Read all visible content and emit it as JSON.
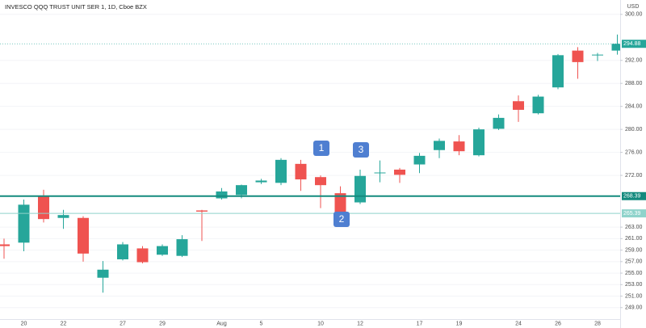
{
  "chart_data": {
    "type": "candlestick",
    "title": "INVESCO QQQ TRUST UNIT SER 1, 1D, Cboe BZX",
    "currency": "USD",
    "categories": [
      null,
      "20",
      null,
      "22",
      null,
      null,
      "27",
      null,
      "29",
      null,
      null,
      "Aug",
      null,
      "5",
      null,
      null,
      "10",
      null,
      "12",
      null,
      null,
      "17",
      null,
      "19",
      null,
      null,
      "24",
      null,
      "26",
      null,
      "28",
      null
    ],
    "open": [
      260.0,
      260.3,
      268.4,
      264.6,
      264.6,
      254.2,
      257.4,
      259.3,
      258.2,
      258.0,
      265.9,
      268.0,
      268.6,
      270.8,
      270.7,
      274.0,
      271.7,
      268.9,
      267.3,
      272.4,
      273.0,
      273.9,
      276.4,
      277.9,
      275.5,
      280.1,
      284.9,
      282.8,
      287.3,
      293.7,
      292.9,
      293.7
    ],
    "high": [
      261.0,
      267.8,
      269.5,
      266.0,
      264.9,
      257.1,
      260.4,
      259.7,
      260.0,
      261.6,
      266.0,
      269.8,
      270.4,
      271.4,
      275.0,
      274.7,
      272.0,
      270.1,
      273.0,
      274.6,
      273.3,
      275.9,
      278.4,
      279.0,
      280.3,
      282.6,
      285.9,
      286.0,
      293.1,
      294.3,
      293.3,
      296.5
    ],
    "low": [
      257.5,
      258.8,
      263.8,
      262.7,
      257.0,
      251.6,
      257.2,
      256.7,
      258.0,
      257.8,
      260.6,
      267.8,
      268.0,
      270.5,
      270.3,
      269.3,
      266.3,
      264.6,
      267.0,
      270.8,
      270.7,
      272.4,
      275.0,
      275.5,
      275.3,
      279.9,
      281.3,
      282.6,
      287.0,
      288.8,
      291.9,
      293.0
    ],
    "close": [
      259.7,
      266.9,
      264.4,
      265.1,
      258.4,
      255.6,
      260.0,
      256.9,
      259.7,
      260.9,
      265.7,
      269.2,
      270.3,
      271.1,
      274.7,
      271.3,
      270.3,
      265.4,
      271.9,
      272.5,
      272.1,
      275.4,
      278.0,
      276.2,
      280.0,
      282.0,
      283.4,
      285.7,
      292.9,
      291.7,
      293.0,
      294.88
    ],
    "up_color": "#26a69a",
    "down_color": "#ef5350",
    "ylim": [
      247,
      302.5
    ],
    "yticks": [
      {
        "value": 249,
        "label": "249.00"
      },
      {
        "value": 251,
        "label": "251.00"
      },
      {
        "value": 253,
        "label": "253.00"
      },
      {
        "value": 255,
        "label": "255.00"
      },
      {
        "value": 257,
        "label": "257.00"
      },
      {
        "value": 259,
        "label": "259.00"
      },
      {
        "value": 261,
        "label": "261.00"
      },
      {
        "value": 263,
        "label": "263.00"
      },
      {
        "value": 272,
        "label": "272.00"
      },
      {
        "value": 276,
        "label": "276.00"
      },
      {
        "value": 280,
        "label": "280.00"
      },
      {
        "value": 284,
        "label": "284.00"
      },
      {
        "value": 288,
        "label": "288.00"
      },
      {
        "value": 292,
        "label": "292.00"
      },
      {
        "value": 300,
        "label": "300.00"
      }
    ],
    "price_lines": [
      {
        "value": 268.39,
        "label": "268.39",
        "color": "#138a7e"
      },
      {
        "value": 265.39,
        "label": "265.39",
        "color": "#8fd3cb"
      }
    ],
    "last_price": {
      "value": 294.88,
      "label": "294.88",
      "color": "#26a69a"
    },
    "annotations": [
      "1",
      "2",
      "3"
    ]
  }
}
